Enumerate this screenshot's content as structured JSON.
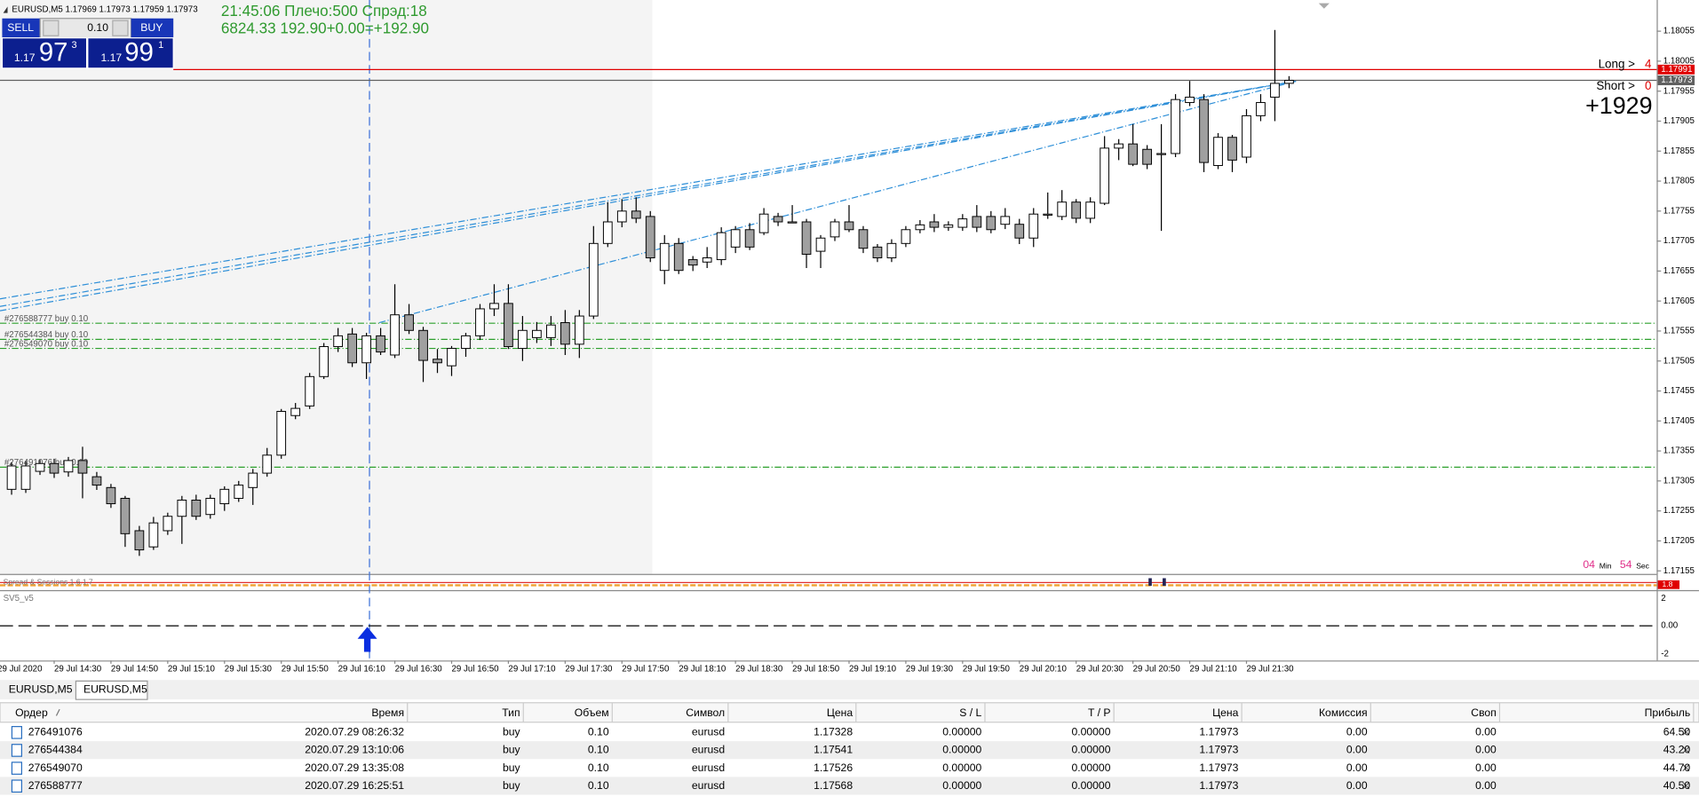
{
  "header": {
    "symbol_line": "EURUSD,M5  1.17969 1.17973 1.17959 1.17973"
  },
  "one_click": {
    "sell": "SELL",
    "lot": "0.10",
    "buy": "BUY",
    "bid_big": "1.17",
    "bid_digits": "97",
    "bid_pip": "3",
    "ask_big": "1.17",
    "ask_digits": "99",
    "ask_pip": "1"
  },
  "info": {
    "line1": "21:45:06 Плечо:500 Спрэд:18",
    "line2": "6824.33   192.90+0.00=+192.90"
  },
  "positions": {
    "long_label": "Long >",
    "long_count": "4",
    "short_label": "Short >",
    "short_count": "0",
    "profit_points": "+1929"
  },
  "timer": {
    "min": "04",
    "min_unit": "Min",
    "sec": "54",
    "sec_unit": "Sec"
  },
  "chart": {
    "ylim": [
      1.1715,
      1.18107
    ],
    "yticks": [
      1.18055,
      1.18005,
      1.17955,
      1.17905,
      1.17855,
      1.17805,
      1.17755,
      1.17705,
      1.17655,
      1.17605,
      1.17555,
      1.17505,
      1.17455,
      1.17405,
      1.17355,
      1.17305,
      1.17255,
      1.17205,
      1.17155
    ],
    "candles": [
      [
        1.17291,
        1.17336,
        1.17282,
        1.1733
      ],
      [
        1.17291,
        1.17338,
        1.17285,
        1.1733
      ],
      [
        1.17321,
        1.1734,
        1.17315,
        1.17334
      ],
      [
        1.17334,
        1.17342,
        1.1731,
        1.17318
      ],
      [
        1.1732,
        1.17345,
        1.17312,
        1.17339
      ],
      [
        1.17339,
        1.17362,
        1.17276,
        1.17318
      ],
      [
        1.17312,
        1.1732,
        1.1729,
        1.17298
      ],
      [
        1.17294,
        1.173,
        1.1726,
        1.17267
      ],
      [
        1.17276,
        1.1728,
        1.17195,
        1.17217
      ],
      [
        1.17222,
        1.1723,
        1.1718,
        1.1719
      ],
      [
        1.17195,
        1.17245,
        1.1719,
        1.17235
      ],
      [
        1.17222,
        1.17252,
        1.17215,
        1.17246
      ],
      [
        1.17246,
        1.1728,
        1.172,
        1.17273
      ],
      [
        1.17273,
        1.17282,
        1.1724,
        1.17246
      ],
      [
        1.17249,
        1.17282,
        1.17242,
        1.17276
      ],
      [
        1.17267,
        1.17296,
        1.17255,
        1.17291
      ],
      [
        1.17276,
        1.17305,
        1.1727,
        1.17298
      ],
      [
        1.17294,
        1.17325,
        1.17265,
        1.17318
      ],
      [
        1.17318,
        1.1736,
        1.17312,
        1.17348
      ],
      [
        1.17348,
        1.17425,
        1.17342,
        1.17421
      ],
      [
        1.17414,
        1.17435,
        1.17408,
        1.17426
      ],
      [
        1.1743,
        1.17485,
        1.17425,
        1.17479
      ],
      [
        1.17479,
        1.17535,
        1.17475,
        1.17529
      ],
      [
        1.17529,
        1.1756,
        1.1752,
        1.17547
      ],
      [
        1.1755,
        1.1756,
        1.17495,
        1.17502
      ],
      [
        1.17502,
        1.17552,
        1.17475,
        1.17547
      ],
      [
        1.17547,
        1.1756,
        1.17515,
        1.1752
      ],
      [
        1.17515,
        1.17633,
        1.1751,
        1.17582
      ],
      [
        1.17582,
        1.176,
        1.1755,
        1.17556
      ],
      [
        1.17556,
        1.17562,
        1.1747,
        1.17506
      ],
      [
        1.17508,
        1.17525,
        1.17485,
        1.17502
      ],
      [
        1.17497,
        1.1753,
        1.1748,
        1.17526
      ],
      [
        1.17526,
        1.17552,
        1.17512,
        1.17547
      ],
      [
        1.17547,
        1.176,
        1.1754,
        1.17592
      ],
      [
        1.17592,
        1.17633,
        1.1758,
        1.17601
      ],
      [
        1.17601,
        1.17633,
        1.17525,
        1.17529
      ],
      [
        1.17526,
        1.1758,
        1.17505,
        1.17556
      ],
      [
        1.17544,
        1.1757,
        1.17535,
        1.17556
      ],
      [
        1.17544,
        1.1758,
        1.1753,
        1.17565
      ],
      [
        1.17569,
        1.1759,
        1.17515,
        1.17533
      ],
      [
        1.17533,
        1.1759,
        1.1751,
        1.1758
      ],
      [
        1.1758,
        1.1773,
        1.17575,
        1.17701
      ],
      [
        1.17701,
        1.1777,
        1.17695,
        1.17737
      ],
      [
        1.17737,
        1.17775,
        1.17728,
        1.17755
      ],
      [
        1.17755,
        1.17778,
        1.17735,
        1.17743
      ],
      [
        1.17746,
        1.17755,
        1.1767,
        1.17677
      ],
      [
        1.17656,
        1.17715,
        1.17633,
        1.17701
      ],
      [
        1.17701,
        1.1771,
        1.1765,
        1.17656
      ],
      [
        1.17674,
        1.1768,
        1.17655,
        1.17665
      ],
      [
        1.1767,
        1.17695,
        1.1766,
        1.17677
      ],
      [
        1.17674,
        1.17728,
        1.17665,
        1.17719
      ],
      [
        1.17695,
        1.1773,
        1.17685,
        1.17724
      ],
      [
        1.17724,
        1.17735,
        1.1769,
        1.17695
      ],
      [
        1.17719,
        1.1776,
        1.17715,
        1.1775
      ],
      [
        1.17746,
        1.17752,
        1.1773,
        1.17737
      ],
      [
        1.17737,
        1.17765,
        1.17735,
        1.17737
      ],
      [
        1.17737,
        1.17742,
        1.1766,
        1.17683
      ],
      [
        1.17688,
        1.17715,
        1.1766,
        1.1771
      ],
      [
        1.17712,
        1.17742,
        1.17705,
        1.17737
      ],
      [
        1.17737,
        1.17765,
        1.1772,
        1.17724
      ],
      [
        1.17724,
        1.1773,
        1.17685,
        1.17693
      ],
      [
        1.17695,
        1.177,
        1.1767,
        1.17677
      ],
      [
        1.17677,
        1.17708,
        1.1767,
        1.17701
      ],
      [
        1.17701,
        1.1773,
        1.17695,
        1.17724
      ],
      [
        1.17724,
        1.1774,
        1.17718,
        1.17732
      ],
      [
        1.17737,
        1.1775,
        1.1772,
        1.17728
      ],
      [
        1.17728,
        1.17738,
        1.17722,
        1.17732
      ],
      [
        1.17728,
        1.1775,
        1.17722,
        1.17742
      ],
      [
        1.17746,
        1.17765,
        1.1772,
        1.17728
      ],
      [
        1.17746,
        1.17755,
        1.17718,
        1.17724
      ],
      [
        1.17733,
        1.1776,
        1.17725,
        1.17746
      ],
      [
        1.17733,
        1.17742,
        1.177,
        1.1771
      ],
      [
        1.1771,
        1.1776,
        1.17695,
        1.1775
      ],
      [
        1.1775,
        1.17786,
        1.17742,
        1.1775
      ],
      [
        1.17746,
        1.1779,
        1.1774,
        1.1777
      ],
      [
        1.1777,
        1.17775,
        1.17735,
        1.17743
      ],
      [
        1.17743,
        1.17778,
        1.17735,
        1.1777
      ],
      [
        1.17768,
        1.1788,
        1.17765,
        1.1786
      ],
      [
        1.1786,
        1.17875,
        1.1784,
        1.17867
      ],
      [
        1.17867,
        1.179,
        1.1783,
        1.17833
      ],
      [
        1.17858,
        1.17865,
        1.17825,
        1.17833
      ],
      [
        1.17851,
        1.179,
        1.17722,
        1.17851
      ],
      [
        1.17851,
        1.1795,
        1.17845,
        1.17941
      ],
      [
        1.17936,
        1.17972,
        1.1793,
        1.17945
      ],
      [
        1.17941,
        1.1795,
        1.1782,
        1.17836
      ],
      [
        1.17831,
        1.17885,
        1.17825,
        1.17878
      ],
      [
        1.17878,
        1.17882,
        1.1782,
        1.1784
      ],
      [
        1.17845,
        1.17925,
        1.17835,
        1.17914
      ],
      [
        1.17914,
        1.1795,
        1.17905,
        1.17936
      ],
      [
        1.17945,
        1.18057,
        1.17905,
        1.17968
      ],
      [
        1.17968,
        1.1798,
        1.1796,
        1.17973
      ]
    ],
    "time_labels": [
      "29 Jul 2020",
      "29 Jul 14:30",
      "29 Jul 14:50",
      "29 Jul 15:10",
      "29 Jul 15:30",
      "29 Jul 15:50",
      "29 Jul 16:10",
      "29 Jul 16:30",
      "29 Jul 16:50",
      "29 Jul 17:10",
      "29 Jul 17:30",
      "29 Jul 17:50",
      "29 Jul 18:10",
      "29 Jul 18:30",
      "29 Jul 18:50",
      "29 Jul 19:10",
      "29 Jul 19:30",
      "29 Jul 19:50",
      "29 Jul 20:10",
      "29 Jul 20:30",
      "29 Jul 20:50",
      "29 Jul 21:10",
      "29 Jul 21:30"
    ],
    "price_lines": [
      {
        "value": 1.17991,
        "color": "#e00000"
      },
      {
        "value": 1.17973,
        "color": "#606060"
      }
    ],
    "orders": [
      {
        "value": 1.17568,
        "label": "#276588777 buy 0.10"
      },
      {
        "value": 1.17541,
        "label": "#276544384 buy 0.10"
      },
      {
        "value": 1.17526,
        "label": "#276549070 buy 0.10"
      },
      {
        "value": 1.17328,
        "label": "#276491076 buy 0.10"
      }
    ]
  },
  "indicator1": {
    "name": "Spread & Sessions 1.6.1.7",
    "value": "1.8"
  },
  "indicator2": {
    "name": "SV5_v5",
    "ticks": [
      "2",
      "0.00",
      "-2"
    ]
  },
  "tabs": [
    "EURUSD,M5",
    "EURUSD,M5"
  ],
  "table": {
    "columns": [
      "Ордер",
      "Время",
      "Тип",
      "Объем",
      "Символ",
      "Цена",
      "S / L",
      "T / P",
      "Цена",
      "Комиссия",
      "Своп",
      "Прибыль"
    ],
    "rows": [
      [
        "276491076",
        "2020.07.29 08:26:32",
        "buy",
        "0.10",
        "eurusd",
        "1.17328",
        "0.00000",
        "0.00000",
        "1.17973",
        "0.00",
        "0.00",
        "64.50"
      ],
      [
        "276544384",
        "2020.07.29 13:10:06",
        "buy",
        "0.10",
        "eurusd",
        "1.17541",
        "0.00000",
        "0.00000",
        "1.17973",
        "0.00",
        "0.00",
        "43.20"
      ],
      [
        "276549070",
        "2020.07.29 13:35:08",
        "buy",
        "0.10",
        "eurusd",
        "1.17526",
        "0.00000",
        "0.00000",
        "1.17973",
        "0.00",
        "0.00",
        "44.70"
      ],
      [
        "276588777",
        "2020.07.29 16:25:51",
        "buy",
        "0.10",
        "eurusd",
        "1.17568",
        "0.00000",
        "0.00000",
        "1.17973",
        "0.00",
        "0.00",
        "40.50"
      ]
    ]
  }
}
